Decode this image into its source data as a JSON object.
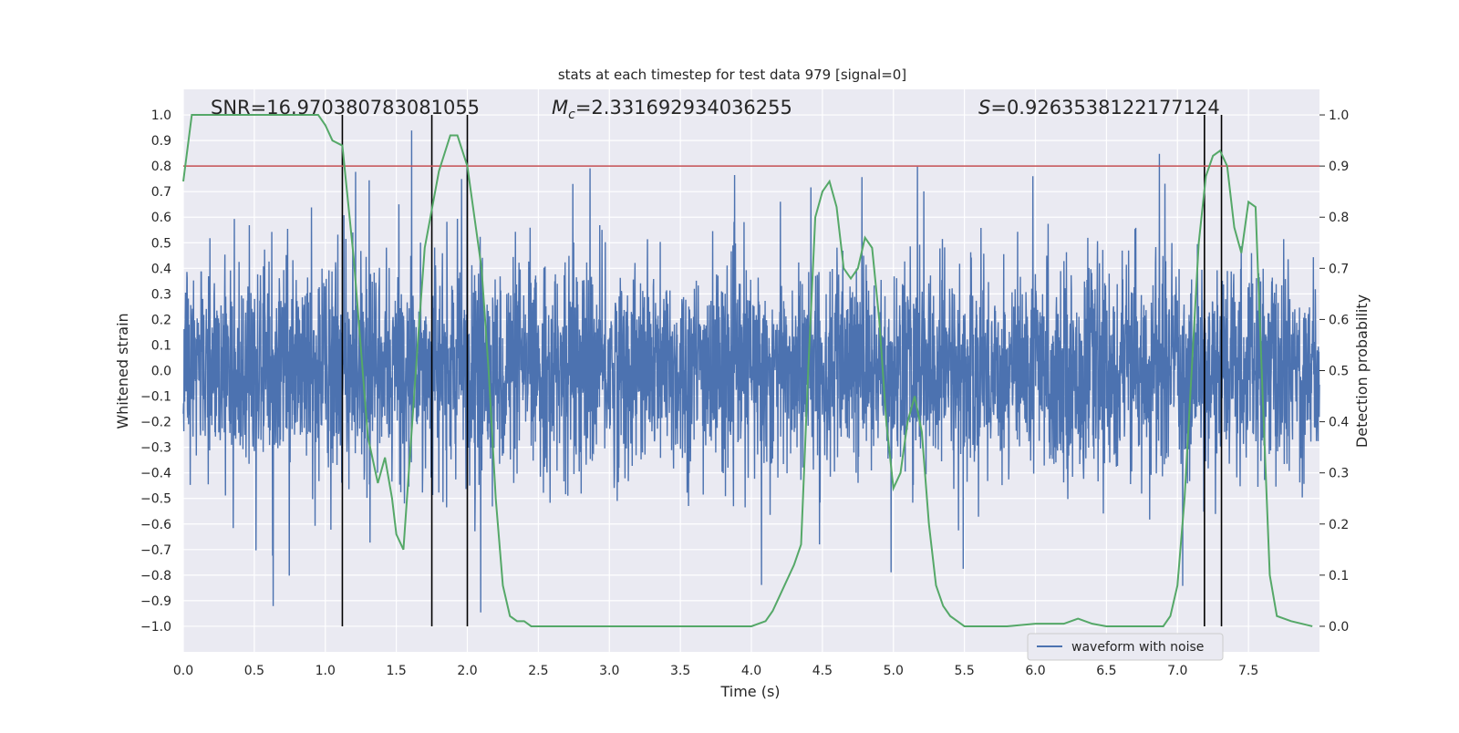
{
  "chart_data": {
    "type": "line",
    "title": "stats at each timestep for test data 979 [signal=0]",
    "xlabel": "Time (s)",
    "ylabel": "Whitened strain",
    "y2label": "Detection probability",
    "xlim": [
      0.0,
      8.0
    ],
    "ylim": [
      -1.1,
      1.1
    ],
    "y2lim": [
      -0.05,
      1.05
    ],
    "x_ticks": [
      0.0,
      0.5,
      1.0,
      1.5,
      2.0,
      2.5,
      3.0,
      3.5,
      4.0,
      4.5,
      5.0,
      5.5,
      6.0,
      6.5,
      7.0,
      7.5
    ],
    "x_tick_labels": [
      "0.0",
      "0.5",
      "1.0",
      "1.5",
      "2.0",
      "2.5",
      "3.0",
      "3.5",
      "4.0",
      "4.5",
      "5.0",
      "5.5",
      "6.0",
      "6.5",
      "7.0",
      "7.5"
    ],
    "y_ticks": [
      1.0,
      0.9,
      0.8,
      0.7,
      0.6,
      0.5,
      0.4,
      0.3,
      0.2,
      0.1,
      0.0,
      -0.1,
      -0.2,
      -0.3,
      -0.4,
      -0.5,
      -0.6,
      -0.7,
      -0.8,
      -0.9,
      -1.0
    ],
    "y_tick_labels": [
      "1.0",
      "0.9",
      "0.8",
      "0.7",
      "0.6",
      "0.5",
      "0.4",
      "0.3",
      "0.2",
      "0.1",
      "0.0",
      "−0.1",
      "−0.2",
      "−0.3",
      "−0.4",
      "−0.5",
      "−0.6",
      "−0.7",
      "−0.8",
      "−0.9",
      "−1.0"
    ],
    "y2_ticks": [
      1.0,
      0.9,
      0.8,
      0.7,
      0.6,
      0.5,
      0.4,
      0.3,
      0.2,
      0.1,
      0.0
    ],
    "y2_tick_labels": [
      "1.0",
      "0.9",
      "0.8",
      "0.7",
      "0.6",
      "0.5",
      "0.4",
      "0.3",
      "0.2",
      "0.1",
      "0.0"
    ],
    "grid": true,
    "legend": {
      "position": "lower-right",
      "entries": [
        "waveform with noise"
      ]
    },
    "annotations": [
      {
        "label": "SNR",
        "value": "=16.970380783081055"
      },
      {
        "label": "M",
        "sub": "c",
        "value": "=2.331692934036255"
      },
      {
        "label": "S",
        "value": "=0.9263538122177124"
      }
    ],
    "threshold": {
      "axis": "y2",
      "value": 0.9,
      "color": "#c44e52"
    },
    "vlines": [
      1.12,
      1.75,
      2.0,
      7.19,
      7.31
    ],
    "vline_range": [
      -1.0,
      1.0
    ],
    "colors": {
      "waveform": "#4c72b0",
      "probability": "#55a868",
      "vline": "#000000",
      "background": "#eaeaf2",
      "grid": "#ffffff"
    },
    "series": [
      {
        "name": "waveform with noise",
        "axis": "y",
        "style": "dense-noise",
        "core_amplitude": 0.4,
        "peak_amplitude": 0.95,
        "samples": 4096
      },
      {
        "axis": "y2",
        "x": [
          0.0,
          0.06,
          0.15,
          0.3,
          0.5,
          0.7,
          0.9,
          0.95,
          1.0,
          1.05,
          1.12,
          1.2,
          1.3,
          1.37,
          1.42,
          1.47,
          1.5,
          1.55,
          1.6,
          1.65,
          1.7,
          1.8,
          1.88,
          1.93,
          2.0,
          2.05,
          2.1,
          2.15,
          2.2,
          2.25,
          2.3,
          2.35,
          2.4,
          2.45,
          2.5,
          2.6,
          2.8,
          3.0,
          3.2,
          3.4,
          3.6,
          3.8,
          4.0,
          4.1,
          4.15,
          4.2,
          4.25,
          4.3,
          4.35,
          4.4,
          4.45,
          4.5,
          4.55,
          4.6,
          4.65,
          4.7,
          4.75,
          4.8,
          4.85,
          4.9,
          4.95,
          5.0,
          5.05,
          5.1,
          5.15,
          5.2,
          5.25,
          5.3,
          5.35,
          5.4,
          5.45,
          5.5,
          5.55,
          5.6,
          5.8,
          6.0,
          6.2,
          6.3,
          6.4,
          6.5,
          6.7,
          6.9,
          6.95,
          7.0,
          7.05,
          7.1,
          7.15,
          7.2,
          7.25,
          7.3,
          7.35,
          7.4,
          7.45,
          7.5,
          7.55,
          7.6,
          7.65,
          7.7,
          7.8,
          7.95
        ],
        "y": [
          0.87,
          1.0,
          1.0,
          1.0,
          1.0,
          1.0,
          1.0,
          1.0,
          0.98,
          0.95,
          0.94,
          0.72,
          0.37,
          0.28,
          0.33,
          0.25,
          0.18,
          0.15,
          0.35,
          0.55,
          0.74,
          0.89,
          0.96,
          0.96,
          0.9,
          0.8,
          0.7,
          0.5,
          0.25,
          0.08,
          0.02,
          0.01,
          0.01,
          0.0,
          0.0,
          0.0,
          0.0,
          0.0,
          0.0,
          0.0,
          0.0,
          0.0,
          0.0,
          0.01,
          0.03,
          0.06,
          0.09,
          0.12,
          0.16,
          0.5,
          0.8,
          0.85,
          0.87,
          0.82,
          0.7,
          0.68,
          0.7,
          0.76,
          0.74,
          0.6,
          0.4,
          0.27,
          0.3,
          0.4,
          0.45,
          0.38,
          0.2,
          0.08,
          0.04,
          0.02,
          0.01,
          0.0,
          0.0,
          0.0,
          0.0,
          0.005,
          0.005,
          0.015,
          0.005,
          0.0,
          0.0,
          0.0,
          0.02,
          0.08,
          0.25,
          0.5,
          0.75,
          0.88,
          0.92,
          0.93,
          0.9,
          0.78,
          0.73,
          0.83,
          0.82,
          0.45,
          0.1,
          0.02,
          0.01,
          0.0
        ]
      }
    ]
  }
}
